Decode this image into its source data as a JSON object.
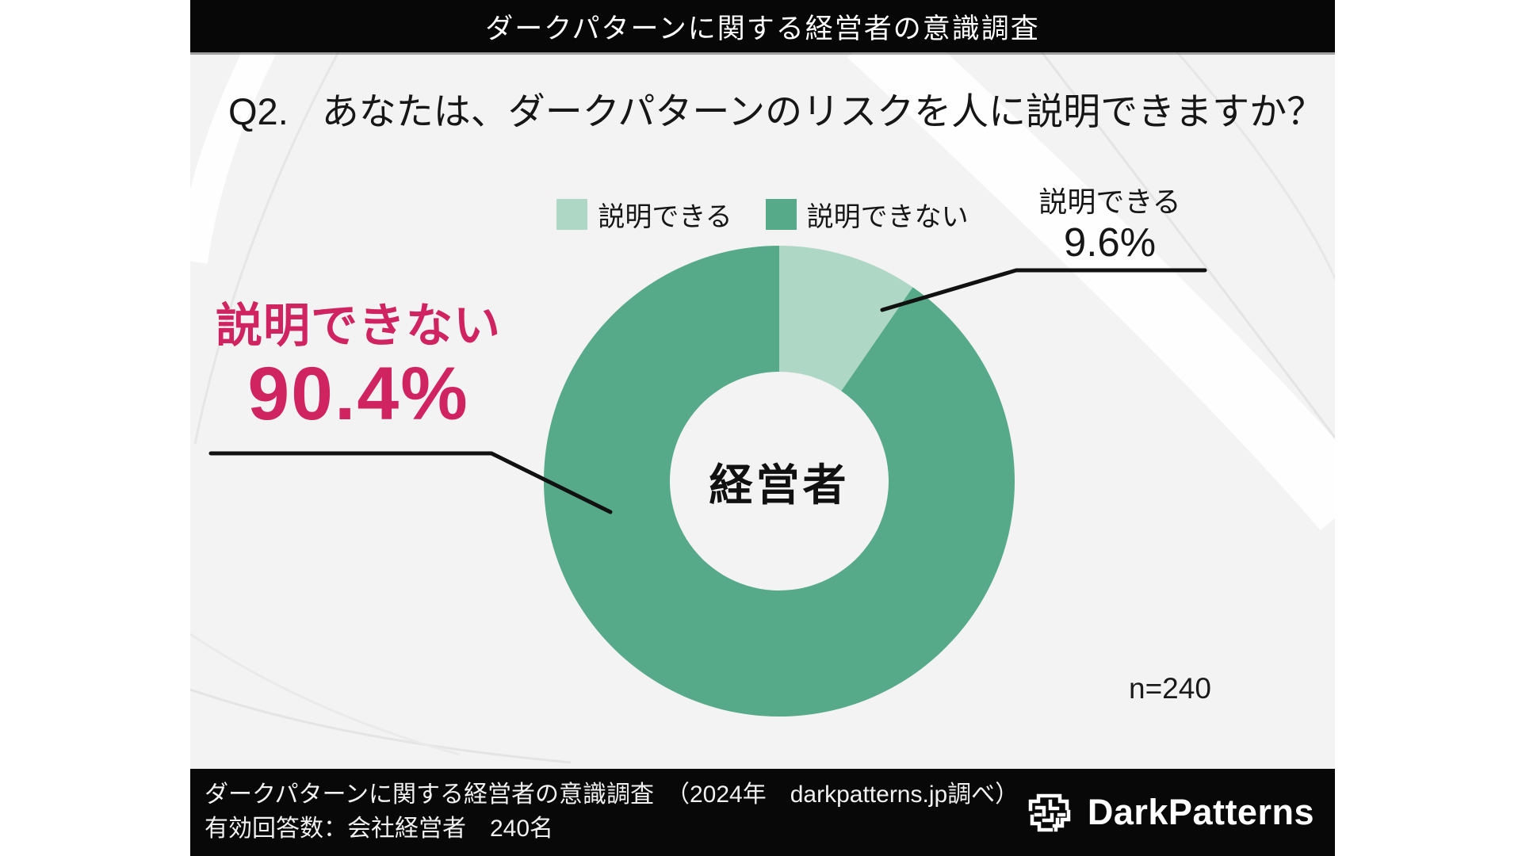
{
  "header": {
    "title": "ダークパターンに関する経営者の意識調査"
  },
  "question": {
    "number": "Q2.",
    "text": "あなたは、ダークパターンのリスクを人に説明できますか？"
  },
  "legend": [
    {
      "label": "説明できる",
      "color": "#AFD7C5"
    },
    {
      "label": "説明できない",
      "color": "#56AA89"
    }
  ],
  "chart_data": {
    "type": "pie",
    "subtype": "donut",
    "title": "Q2.　あなたは、ダークパターンのリスクを人に説明できますか？",
    "labels": [
      "説明できる",
      "説明できない"
    ],
    "values": [
      9.6,
      90.4
    ],
    "unit": "%",
    "colors": [
      "#AFD7C5",
      "#56AA89"
    ],
    "start_angle_deg": 0,
    "clockwise": true,
    "center_label": "経営者",
    "legend_position": "top",
    "sample_size": "n=240"
  },
  "callout_right": {
    "label": "説明できる",
    "value": "9.6%"
  },
  "callout_left": {
    "label": "説明できない",
    "value": "90.4%"
  },
  "sample_size": "n=240",
  "footer": {
    "line1": "ダークパターンに関する経営者の意識調査　（2024年　darkpatterns.jp調べ）",
    "line2": "有効回答数：会社経営者　240名",
    "brand": "DarkPatterns",
    "logo_icon": "maze-brain-icon"
  },
  "colors": {
    "accent_pink": "#D02460",
    "green_dark": "#56AA89",
    "green_light": "#AFD7C5",
    "bar_black": "#080808",
    "content_gray": "#f3f3f4"
  }
}
